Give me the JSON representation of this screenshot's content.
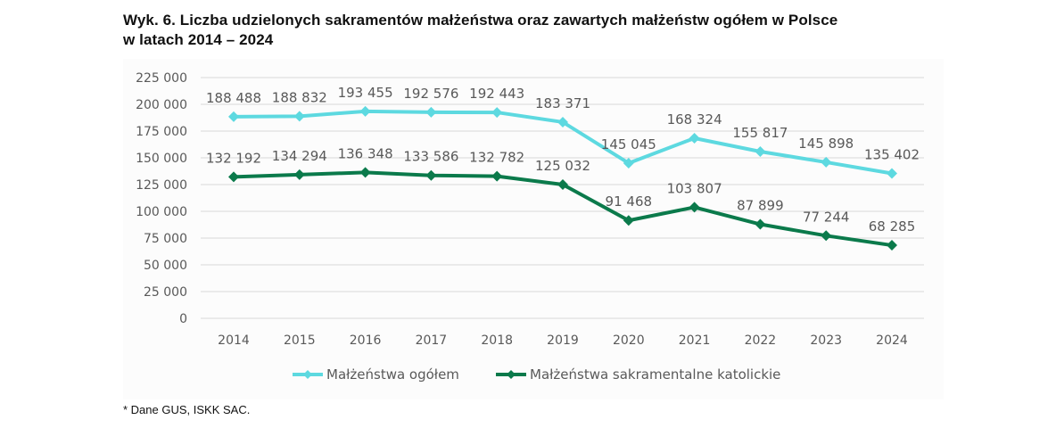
{
  "title": "Wyk. 6. Liczba udzielonych sakramentów małżeństwa oraz zawartych małżeństw ogółem w Polsce",
  "title_line2": "w latach 2014 – 2024",
  "footnote": "* Dane GUS, ISKK SAC.",
  "chart_data": {
    "type": "line",
    "title": "Wyk. 6. Liczba udzielonych sakramentów małżeństwa oraz zawartych małżeństw ogółem w Polsce w latach 2014 – 2024",
    "xlabel": "",
    "ylabel": "",
    "categories": [
      "2014",
      "2015",
      "2016",
      "2017",
      "2018",
      "2019",
      "2020",
      "2021",
      "2022",
      "2023",
      "2024"
    ],
    "ylim": [
      0,
      225000
    ],
    "y_ticks": [
      0,
      25000,
      50000,
      75000,
      100000,
      125000,
      150000,
      175000,
      200000,
      225000
    ],
    "y_tick_labels": [
      "0",
      "25 000",
      "50 000",
      "75 000",
      "100 000",
      "125 000",
      "150 000",
      "175 000",
      "200 000",
      "225 000"
    ],
    "grid": true,
    "legend_position": "bottom",
    "series": [
      {
        "name": "Małżeństwa ogółem",
        "color": "#5dd9e0",
        "values": [
          188488,
          188832,
          193455,
          192576,
          192443,
          183371,
          145045,
          168324,
          155817,
          145898,
          135402
        ],
        "labels": [
          "188 488",
          "188 832",
          "193 455",
          "192 576",
          "192 443",
          "183 371",
          "145 045",
          "168 324",
          "155 817",
          "145 898",
          "135 402"
        ]
      },
      {
        "name": "Małżeństwa sakramentalne katolickie",
        "color": "#0b7a4b",
        "values": [
          132192,
          134294,
          136348,
          133586,
          132782,
          125032,
          91468,
          103807,
          87899,
          77244,
          68285
        ],
        "labels": [
          "132 192",
          "134 294",
          "136 348",
          "133 586",
          "132 782",
          "125 032",
          "91 468",
          "103 807",
          "87 899",
          "77 244",
          "68 285"
        ]
      }
    ]
  }
}
